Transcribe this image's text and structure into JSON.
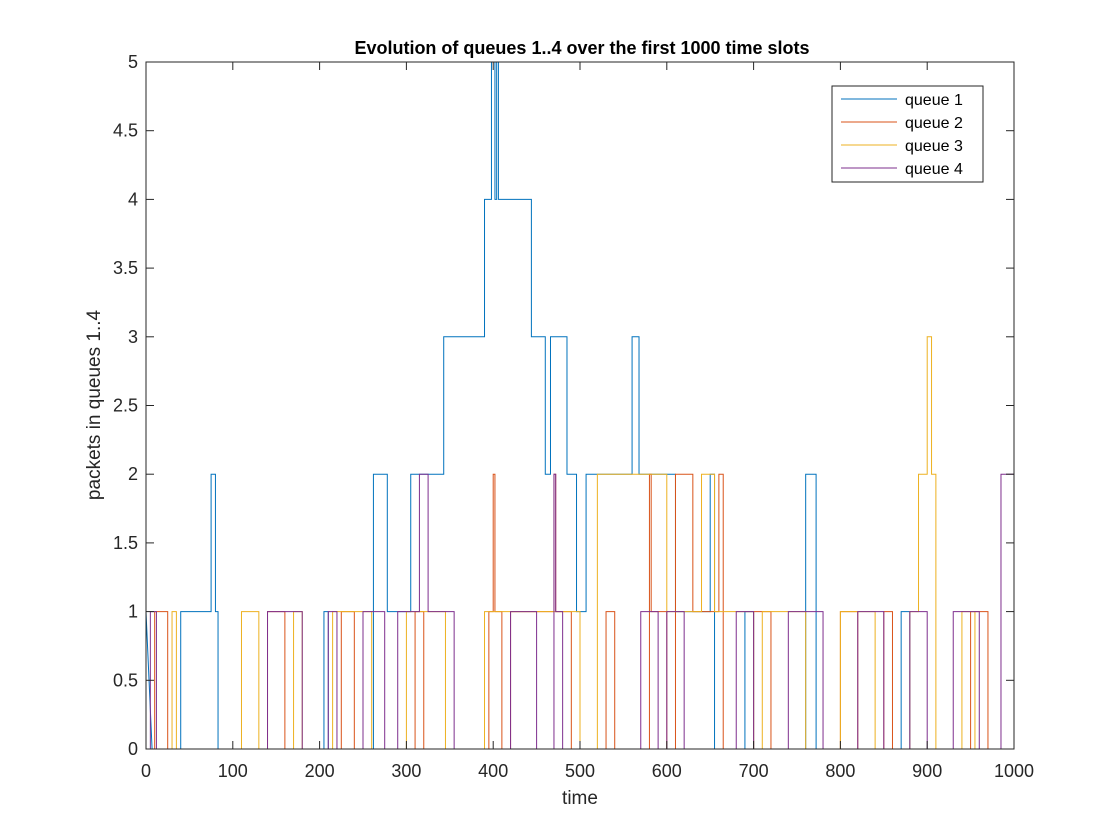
{
  "chart_data": {
    "type": "line",
    "step": true,
    "title": "Evolution of queues 1..4 over the first 1000 time slots",
    "xlabel": "time",
    "ylabel": "packets in queues 1..4",
    "xlim": [
      0,
      1000
    ],
    "ylim": [
      0,
      5
    ],
    "xticks": [
      "0",
      "100",
      "200",
      "300",
      "400",
      "500",
      "600",
      "700",
      "800",
      "900",
      "1000"
    ],
    "yticks": [
      "0",
      "0.5",
      "1",
      "1.5",
      "2",
      "2.5",
      "3",
      "3.5",
      "4",
      "4.5",
      "5"
    ],
    "grid": false,
    "legend_position": "top-right",
    "series": [
      {
        "name": "queue 1",
        "color": "#0072BD",
        "points": [
          [
            0,
            1
          ],
          [
            7,
            0
          ],
          [
            40,
            0
          ],
          [
            40,
            1
          ],
          [
            75,
            1
          ],
          [
            75,
            2
          ],
          [
            80,
            2
          ],
          [
            80,
            1
          ],
          [
            83,
            1
          ],
          [
            83,
            0
          ],
          [
            205,
            0
          ],
          [
            205,
            1
          ],
          [
            210,
            1
          ],
          [
            210,
            0
          ],
          [
            262,
            0
          ],
          [
            262,
            2
          ],
          [
            278,
            2
          ],
          [
            278,
            1
          ],
          [
            305,
            1
          ],
          [
            305,
            2
          ],
          [
            343,
            2
          ],
          [
            343,
            3
          ],
          [
            390,
            3
          ],
          [
            390,
            4
          ],
          [
            398,
            4
          ],
          [
            398,
            5
          ],
          [
            402,
            5
          ],
          [
            402,
            4
          ],
          [
            404,
            4
          ],
          [
            404,
            5
          ],
          [
            406,
            5
          ],
          [
            406,
            4
          ],
          [
            444,
            4
          ],
          [
            444,
            3
          ],
          [
            460,
            3
          ],
          [
            460,
            2
          ],
          [
            466,
            2
          ],
          [
            466,
            3
          ],
          [
            485,
            3
          ],
          [
            485,
            2
          ],
          [
            496,
            2
          ],
          [
            496,
            1
          ],
          [
            507,
            1
          ],
          [
            507,
            2
          ],
          [
            560,
            2
          ],
          [
            560,
            3
          ],
          [
            568,
            3
          ],
          [
            568,
            2
          ],
          [
            610,
            2
          ],
          [
            610,
            1
          ],
          [
            650,
            1
          ],
          [
            650,
            2
          ],
          [
            655,
            2
          ],
          [
            655,
            0
          ],
          [
            690,
            0
          ],
          [
            690,
            1
          ],
          [
            700,
            1
          ],
          [
            700,
            0
          ],
          [
            760,
            0
          ],
          [
            760,
            2
          ],
          [
            772,
            2
          ],
          [
            772,
            0
          ],
          [
            870,
            0
          ],
          [
            870,
            1
          ],
          [
            880,
            1
          ],
          [
            880,
            0
          ],
          [
            1000,
            0
          ]
        ]
      },
      {
        "name": "queue 2",
        "color": "#D95319",
        "points": [
          [
            0,
            0
          ],
          [
            10,
            0
          ],
          [
            10,
            1
          ],
          [
            25,
            1
          ],
          [
            25,
            0
          ],
          [
            140,
            0
          ],
          [
            140,
            1
          ],
          [
            160,
            1
          ],
          [
            160,
            0
          ],
          [
            225,
            0
          ],
          [
            225,
            1
          ],
          [
            240,
            1
          ],
          [
            240,
            0
          ],
          [
            310,
            0
          ],
          [
            310,
            1
          ],
          [
            320,
            1
          ],
          [
            320,
            0
          ],
          [
            395,
            0
          ],
          [
            395,
            1
          ],
          [
            400,
            1
          ],
          [
            400,
            2
          ],
          [
            402,
            2
          ],
          [
            402,
            1
          ],
          [
            410,
            1
          ],
          [
            410,
            0
          ],
          [
            420,
            0
          ],
          [
            420,
            1
          ],
          [
            470,
            1
          ],
          [
            470,
            2
          ],
          [
            472,
            2
          ],
          [
            472,
            1
          ],
          [
            490,
            1
          ],
          [
            490,
            0
          ],
          [
            530,
            0
          ],
          [
            530,
            1
          ],
          [
            540,
            1
          ],
          [
            540,
            0
          ],
          [
            580,
            0
          ],
          [
            580,
            2
          ],
          [
            582,
            2
          ],
          [
            582,
            1
          ],
          [
            600,
            1
          ],
          [
            600,
            0
          ],
          [
            610,
            0
          ],
          [
            610,
            2
          ],
          [
            630,
            2
          ],
          [
            630,
            1
          ],
          [
            660,
            1
          ],
          [
            660,
            2
          ],
          [
            665,
            2
          ],
          [
            665,
            0
          ],
          [
            700,
            0
          ],
          [
            700,
            1
          ],
          [
            720,
            1
          ],
          [
            720,
            0
          ],
          [
            800,
            0
          ],
          [
            800,
            1
          ],
          [
            820,
            1
          ],
          [
            820,
            0
          ],
          [
            850,
            0
          ],
          [
            850,
            1
          ],
          [
            860,
            1
          ],
          [
            860,
            0
          ],
          [
            950,
            0
          ],
          [
            950,
            1
          ],
          [
            970,
            1
          ],
          [
            970,
            0
          ],
          [
            1000,
            0
          ]
        ]
      },
      {
        "name": "queue 3",
        "color": "#EDB120",
        "points": [
          [
            0,
            0
          ],
          [
            30,
            0
          ],
          [
            30,
            1
          ],
          [
            35,
            1
          ],
          [
            35,
            0
          ],
          [
            110,
            0
          ],
          [
            110,
            1
          ],
          [
            130,
            1
          ],
          [
            130,
            0
          ],
          [
            170,
            0
          ],
          [
            170,
            1
          ],
          [
            180,
            1
          ],
          [
            180,
            0
          ],
          [
            215,
            0
          ],
          [
            215,
            1
          ],
          [
            260,
            1
          ],
          [
            260,
            0
          ],
          [
            300,
            0
          ],
          [
            300,
            1
          ],
          [
            345,
            1
          ],
          [
            345,
            0
          ],
          [
            390,
            0
          ],
          [
            390,
            1
          ],
          [
            500,
            1
          ],
          [
            500,
            0
          ],
          [
            520,
            0
          ],
          [
            520,
            2
          ],
          [
            600,
            2
          ],
          [
            600,
            1
          ],
          [
            640,
            1
          ],
          [
            640,
            2
          ],
          [
            655,
            2
          ],
          [
            655,
            1
          ],
          [
            700,
            1
          ],
          [
            700,
            0
          ],
          [
            710,
            0
          ],
          [
            710,
            1
          ],
          [
            760,
            1
          ],
          [
            760,
            0
          ],
          [
            800,
            0
          ],
          [
            800,
            1
          ],
          [
            840,
            1
          ],
          [
            840,
            0
          ],
          [
            880,
            0
          ],
          [
            880,
            1
          ],
          [
            890,
            1
          ],
          [
            890,
            2
          ],
          [
            900,
            2
          ],
          [
            900,
            3
          ],
          [
            905,
            3
          ],
          [
            905,
            2
          ],
          [
            910,
            2
          ],
          [
            910,
            0
          ],
          [
            940,
            0
          ],
          [
            940,
            1
          ],
          [
            955,
            1
          ],
          [
            955,
            0
          ],
          [
            1000,
            0
          ]
        ]
      },
      {
        "name": "queue 4",
        "color": "#7E2F8E",
        "points": [
          [
            0,
            0
          ],
          [
            5,
            0
          ],
          [
            5,
            1
          ],
          [
            12,
            1
          ],
          [
            12,
            0
          ],
          [
            140,
            0
          ],
          [
            140,
            1
          ],
          [
            180,
            1
          ],
          [
            180,
            0
          ],
          [
            210,
            0
          ],
          [
            210,
            1
          ],
          [
            220,
            1
          ],
          [
            220,
            0
          ],
          [
            250,
            0
          ],
          [
            250,
            1
          ],
          [
            275,
            1
          ],
          [
            275,
            0
          ],
          [
            290,
            0
          ],
          [
            290,
            1
          ],
          [
            315,
            1
          ],
          [
            315,
            2
          ],
          [
            325,
            2
          ],
          [
            325,
            1
          ],
          [
            355,
            1
          ],
          [
            355,
            0
          ],
          [
            420,
            0
          ],
          [
            420,
            1
          ],
          [
            450,
            1
          ],
          [
            450,
            0
          ],
          [
            470,
            0
          ],
          [
            470,
            2
          ],
          [
            472,
            2
          ],
          [
            472,
            1
          ],
          [
            480,
            1
          ],
          [
            480,
            0
          ],
          [
            570,
            0
          ],
          [
            570,
            1
          ],
          [
            590,
            1
          ],
          [
            590,
            0
          ],
          [
            600,
            0
          ],
          [
            600,
            1
          ],
          [
            620,
            1
          ],
          [
            620,
            0
          ],
          [
            680,
            0
          ],
          [
            680,
            1
          ],
          [
            700,
            1
          ],
          [
            700,
            0
          ],
          [
            740,
            0
          ],
          [
            740,
            1
          ],
          [
            780,
            1
          ],
          [
            780,
            0
          ],
          [
            820,
            0
          ],
          [
            820,
            1
          ],
          [
            850,
            1
          ],
          [
            850,
            0
          ],
          [
            880,
            0
          ],
          [
            880,
            1
          ],
          [
            900,
            1
          ],
          [
            900,
            0
          ],
          [
            930,
            0
          ],
          [
            930,
            1
          ],
          [
            960,
            1
          ],
          [
            960,
            0
          ],
          [
            985,
            0
          ],
          [
            985,
            2
          ],
          [
            1000,
            2
          ]
        ]
      }
    ]
  }
}
